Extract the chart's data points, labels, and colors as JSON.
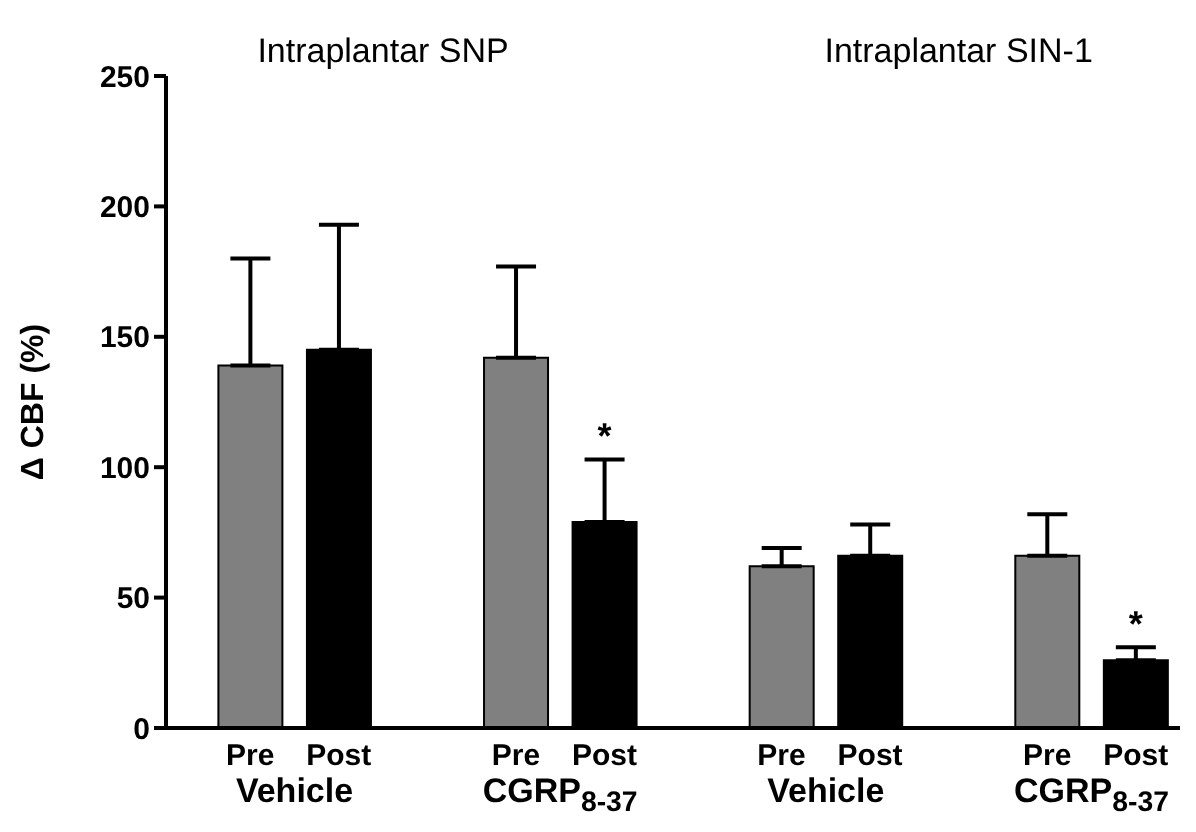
{
  "chart_data": {
    "type": "bar",
    "ylabel": "Δ CBF (%)",
    "categories": [
      "Pre",
      "Post",
      null,
      "Pre",
      "Post",
      null,
      "Pre",
      "Post",
      null,
      "Pre",
      "Post"
    ],
    "values": [
      139,
      145,
      null,
      142,
      79,
      null,
      62,
      66,
      null,
      66,
      26
    ],
    "errors": [
      [
        139,
        180
      ],
      [
        145,
        193
      ],
      null,
      [
        142,
        177
      ],
      [
        79,
        103
      ],
      null,
      [
        62,
        69
      ],
      [
        66,
        78
      ],
      null,
      [
        66,
        82
      ],
      [
        26,
        31
      ]
    ],
    "colors": [
      "#808080",
      "#000000",
      null,
      "#808080",
      "#000000",
      null,
      "#808080",
      "#000000",
      null,
      "#808080",
      "#000000"
    ],
    "ylim": [
      0,
      250
    ],
    "yticks": [
      0,
      50,
      100,
      150,
      200,
      250
    ],
    "annotations": [
      "Intraplantar SNP",
      "Intraplantar SIN-1",
      "Vehicle",
      "CGRP$_{8-37}$",
      "Vehicle",
      "CGRP$_{8-37}$",
      "*",
      "*"
    ],
    "grid": false,
    "legend": false
  }
}
